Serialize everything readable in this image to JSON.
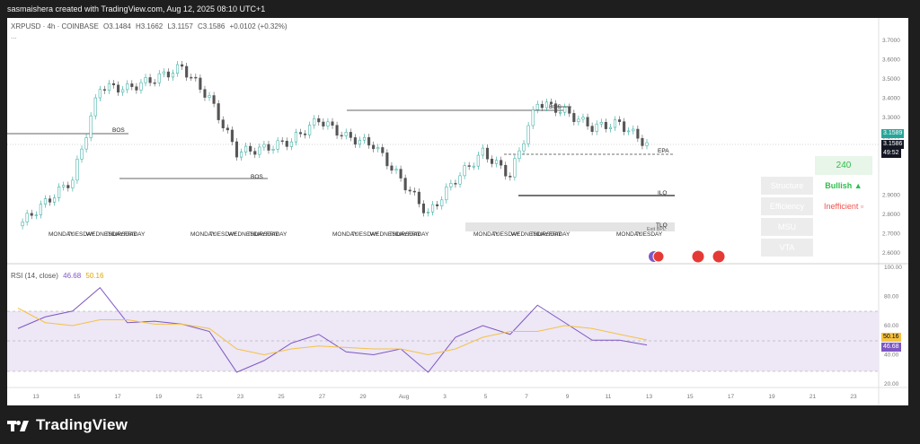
{
  "header": {
    "text": "sasmaishera created with TradingView.com, Aug 12, 2025 08:10 UTC+1"
  },
  "symbol_info": {
    "symbol": "XRPUSD · 4h · COINBASE",
    "open": "O3.1484",
    "high": "H3.1662",
    "low": "L3.1157",
    "close": "C3.1586",
    "change": "+0.0102 (+0.32%)",
    "more": "..."
  },
  "rsi_info": {
    "label": "RSI (14, close)",
    "rsi_value": "46.68",
    "ma_value": "50.16"
  },
  "price_axis": [
    "3.7000",
    "3.6000",
    "3.5000",
    "3.4000",
    "3.3000",
    "3.2000",
    "2.9000",
    "2.8000",
    "2.7000",
    "2.6000"
  ],
  "price_labels": {
    "last": "3.1589",
    "current": "3.1586",
    "countdown": "49:52"
  },
  "rsi_axis": [
    "100.00",
    "80.00",
    "60.00",
    "40.00",
    "20.00"
  ],
  "rsi_labels": {
    "ma": "50.16",
    "rsi": "46.68"
  },
  "time_axis": [
    "13",
    "15",
    "17",
    "19",
    "21",
    "23",
    "25",
    "27",
    "29",
    "Aug",
    "3",
    "5",
    "7",
    "9",
    "11",
    "13",
    "15",
    "17",
    "19",
    "21",
    "23"
  ],
  "day_labels": [
    {
      "text": "MONDAY"
    },
    {
      "text": "TUESDAY"
    },
    {
      "text": "WEDNESDAY"
    },
    {
      "text": "THURSDAY"
    },
    {
      "text": "FRIDAY"
    },
    {
      "text": "MONDAY"
    },
    {
      "text": "TUESDAY"
    },
    {
      "text": "WEDNESDAY"
    },
    {
      "text": "THURSDAY"
    },
    {
      "text": "FRIDAY"
    },
    {
      "text": "MONDAY"
    },
    {
      "text": "TUESDAY"
    },
    {
      "text": "WEDNESDAY"
    },
    {
      "text": "THURSDAY"
    },
    {
      "text": "FRIDAY"
    },
    {
      "text": "MONDAY"
    },
    {
      "text": "TUESDAY"
    },
    {
      "text": "WEDNESDAY"
    },
    {
      "text": "THURSDAY"
    },
    {
      "text": "FRIDAY"
    },
    {
      "text": "MONDAY"
    },
    {
      "text": "TUESDAY"
    }
  ],
  "annotations": {
    "bos_1": "BOS",
    "bos_2": "BOS",
    "bos_3": "BOS",
    "bos_4": "BOS",
    "epa": "EPA",
    "ilq": "ILQ",
    "tlq": "TLQ",
    "bpl": "Exit BPL"
  },
  "table": {
    "value": "240",
    "rows": [
      {
        "label": "Structure",
        "value": "Bullish ▲",
        "color": "#2ebd4b"
      },
      {
        "label": "Efficiency",
        "value": "Inefficient ▫",
        "color": "#ef5350"
      },
      {
        "label": "MSU",
        "value": "",
        "color": ""
      },
      {
        "label": "VTA",
        "value": "",
        "color": ""
      }
    ]
  },
  "footer": {
    "brand": "TradingView"
  },
  "colors": {
    "up": "#26a69a",
    "down": "#555555",
    "rsi": "#7e57c2",
    "rsi_ma": "#f5c242",
    "price_badge": "#26a69a",
    "current_badge": "#131722"
  },
  "chart_data": [
    {
      "type": "candlestick",
      "title": "XRPUSD · 4h · COINBASE",
      "x": [
        "Jul 13",
        "Jul 15",
        "Jul 17",
        "Jul 18",
        "Jul 19",
        "Jul 21",
        "Jul 22",
        "Jul 23",
        "Jul 24",
        "Jul 25",
        "Jul 27",
        "Jul 28",
        "Jul 29",
        "Jul 31",
        "Aug 1",
        "Aug 3",
        "Aug 5",
        "Aug 6",
        "Aug 7",
        "Aug 8",
        "Aug 9",
        "Aug 10",
        "Aug 11",
        "Aug 12"
      ],
      "close": [
        2.74,
        2.86,
        2.98,
        3.46,
        3.45,
        3.5,
        3.56,
        3.4,
        3.12,
        3.14,
        3.18,
        3.29,
        3.2,
        3.16,
        2.98,
        2.8,
        2.98,
        3.12,
        3.0,
        3.38,
        3.33,
        3.25,
        3.27,
        3.16
      ],
      "ylim": [
        2.6,
        3.75
      ],
      "levels": [
        {
          "name": "BOS",
          "value": 3.25
        },
        {
          "name": "BOS",
          "value": 2.96
        },
        {
          "name": "BOS",
          "value": 3.33
        },
        {
          "name": "BOS",
          "value": 3.37
        },
        {
          "name": "EPA",
          "value": 3.14
        },
        {
          "name": "ILQ",
          "value": 2.9
        },
        {
          "name": "TLQ",
          "value": 2.72
        }
      ]
    },
    {
      "type": "line",
      "title": "RSI (14, close)",
      "x": [
        "Jul 13",
        "Jul 15",
        "Jul 17",
        "Jul 18",
        "Jul 19",
        "Jul 21",
        "Jul 22",
        "Jul 23",
        "Jul 24",
        "Jul 25",
        "Jul 27",
        "Jul 28",
        "Jul 29",
        "Jul 31",
        "Aug 1",
        "Aug 3",
        "Aug 5",
        "Aug 6",
        "Aug 7",
        "Aug 8",
        "Aug 9",
        "Aug 10",
        "Aug 11",
        "Aug 12"
      ],
      "series": [
        {
          "name": "RSI",
          "values": [
            58,
            66,
            70,
            86,
            62,
            63,
            61,
            56,
            28,
            36,
            48,
            54,
            42,
            40,
            44,
            28,
            52,
            60,
            54,
            74,
            62,
            50,
            50,
            46.68
          ]
        },
        {
          "name": "MA",
          "values": [
            72,
            62,
            60,
            64,
            64,
            61,
            61,
            58,
            44,
            40,
            44,
            46,
            45,
            44,
            44,
            40,
            44,
            52,
            56,
            56,
            60,
            58,
            54,
            50.16
          ]
        }
      ],
      "ylim": [
        20,
        100
      ],
      "bands": [
        30,
        50,
        70
      ]
    }
  ]
}
